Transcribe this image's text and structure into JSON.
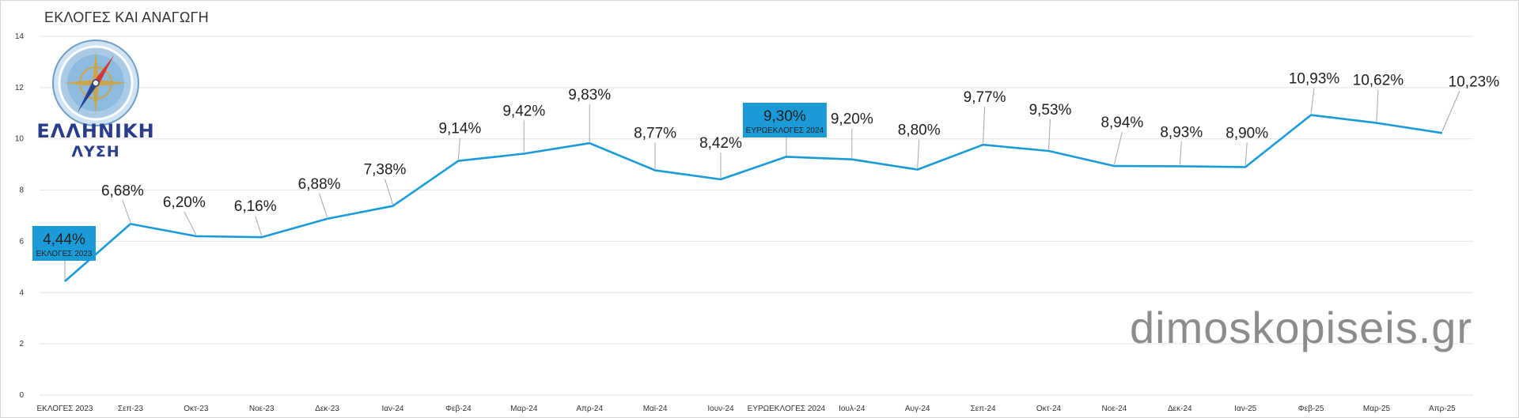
{
  "title": "ΕΚΛΟΓΕΣ ΚΑΙ ΑΝΑΓΩΓΗ",
  "logo": {
    "line1": "ΕΛΛΗΝΙΚΗ",
    "line2": "ΛΥΣΗ"
  },
  "watermark": "dimoskopiseis.gr",
  "colors": {
    "line": "#1a9bd7",
    "box": "#1a9bd7",
    "grid": "#e3e3e3",
    "leader": "#a6a6a6"
  },
  "chart_data": {
    "type": "line",
    "title": "ΕΚΛΟΓΕΣ ΚΑΙ ΑΝΑΓΩΓΗ",
    "xlabel": "",
    "ylabel": "",
    "ylim": [
      0,
      14
    ],
    "yticks": [
      "0",
      "2",
      "4",
      "6",
      "8",
      "10",
      "12",
      "14"
    ],
    "grid": true,
    "categories": [
      "ΕΚΛΟΓΕΣ 2023",
      "Σεπ-23",
      "Οκτ-23",
      "Νοε-23",
      "Δεκ-23",
      "Ιαν-24",
      "Φεβ-24",
      "Μαρ-24",
      "Απρ-24",
      "Μαϊ-24",
      "Ιουν-24",
      "ΕΥΡΩΕΚΛΟΓΕΣ 2024",
      "Ιουλ-24",
      "Αυγ-24",
      "Σεπ-24",
      "Οκτ-24",
      "Νοε-24",
      "Δεκ-24",
      "Ιαν-25",
      "Φεβ-25",
      "Μαρ-25",
      "Απρ-25"
    ],
    "values": [
      4.44,
      6.68,
      6.2,
      6.16,
      6.88,
      7.38,
      9.14,
      9.42,
      9.83,
      8.77,
      8.42,
      9.3,
      9.2,
      8.8,
      9.77,
      9.53,
      8.94,
      8.93,
      8.9,
      10.93,
      10.62,
      10.23
    ],
    "data_labels": [
      "4,44%",
      "6,68%",
      "6,20%",
      "6,16%",
      "6,88%",
      "7,38%",
      "9,14%",
      "9,42%",
      "9,83%",
      "8,77%",
      "8,42%",
      "9,30%",
      "9,20%",
      "8,80%",
      "9,77%",
      "9,53%",
      "8,94%",
      "8,93%",
      "8,90%",
      "10,93%",
      "10,62%",
      "10,23%"
    ],
    "annotations": [
      {
        "index": 0,
        "label": "ΕΚΛΟΓΕΣ 2023"
      },
      {
        "index": 11,
        "label": "ΕΥΡΩΕΚΛΟΓΕΣ 2024"
      }
    ]
  }
}
